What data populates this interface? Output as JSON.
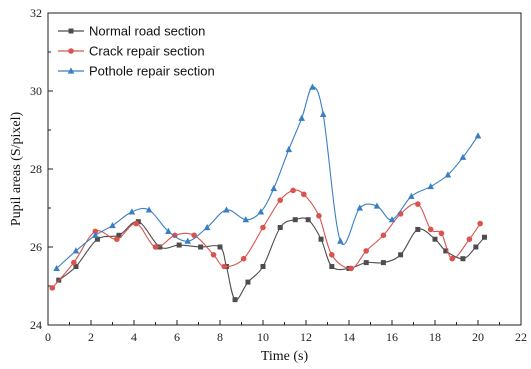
{
  "chart_data": {
    "type": "line",
    "xlabel": "Time (s)",
    "ylabel": "Pupil areas (S/pixel)",
    "xlim": [
      0,
      22
    ],
    "ylim": [
      24,
      32
    ],
    "xticks": [
      "0",
      "2",
      "4",
      "6",
      "8",
      "10",
      "12",
      "14",
      "16",
      "18",
      "20",
      "22"
    ],
    "yticks": [
      "24",
      "26",
      "28",
      "30",
      "32"
    ],
    "legend_position": "top-left",
    "grid": false,
    "series": [
      {
        "name": "Normal road section",
        "color": "#4d4d4d",
        "marker": "square",
        "points": [
          [
            0.5,
            25.15
          ],
          [
            1.3,
            25.5
          ],
          [
            2.3,
            26.2
          ],
          [
            3.3,
            26.3
          ],
          [
            4.2,
            26.65
          ],
          [
            5.2,
            26.0
          ],
          [
            6.1,
            26.05
          ],
          [
            7.1,
            26.0
          ],
          [
            8.0,
            26.0
          ],
          [
            8.3,
            25.5
          ],
          [
            8.7,
            24.65
          ],
          [
            9.3,
            25.1
          ],
          [
            10.0,
            25.5
          ],
          [
            10.8,
            26.5
          ],
          [
            11.5,
            26.7
          ],
          [
            12.1,
            26.7
          ],
          [
            12.7,
            26.2
          ],
          [
            13.2,
            25.5
          ],
          [
            14.0,
            25.45
          ],
          [
            14.8,
            25.6
          ],
          [
            15.6,
            25.6
          ],
          [
            16.4,
            25.8
          ],
          [
            17.2,
            26.45
          ],
          [
            18.0,
            26.2
          ],
          [
            18.5,
            25.9
          ],
          [
            19.3,
            25.7
          ],
          [
            19.9,
            26.0
          ],
          [
            20.3,
            26.25
          ]
        ]
      },
      {
        "name": "Crack repair section",
        "color": "#d9534f",
        "marker": "circle",
        "points": [
          [
            0.2,
            24.95
          ],
          [
            1.2,
            25.6
          ],
          [
            2.2,
            26.4
          ],
          [
            3.2,
            26.2
          ],
          [
            4.1,
            26.6
          ],
          [
            5.0,
            26.0
          ],
          [
            5.9,
            26.3
          ],
          [
            6.8,
            26.3
          ],
          [
            7.7,
            25.8
          ],
          [
            8.2,
            25.5
          ],
          [
            9.1,
            25.7
          ],
          [
            10.0,
            26.5
          ],
          [
            10.8,
            27.2
          ],
          [
            11.4,
            27.45
          ],
          [
            11.9,
            27.35
          ],
          [
            12.6,
            26.8
          ],
          [
            13.2,
            25.8
          ],
          [
            14.1,
            25.45
          ],
          [
            14.8,
            25.9
          ],
          [
            15.6,
            26.3
          ],
          [
            16.4,
            26.85
          ],
          [
            17.2,
            27.1
          ],
          [
            17.8,
            26.45
          ],
          [
            18.3,
            26.35
          ],
          [
            18.8,
            25.7
          ],
          [
            19.6,
            26.2
          ],
          [
            20.1,
            26.6
          ]
        ]
      },
      {
        "name": "Pothole repair section",
        "color": "#3a7fc4",
        "marker": "triangle",
        "points": [
          [
            0.4,
            25.45
          ],
          [
            1.3,
            25.9
          ],
          [
            2.2,
            26.3
          ],
          [
            3.0,
            26.55
          ],
          [
            3.9,
            26.9
          ],
          [
            4.7,
            26.95
          ],
          [
            5.6,
            26.4
          ],
          [
            6.5,
            26.15
          ],
          [
            7.4,
            26.5
          ],
          [
            8.3,
            26.95
          ],
          [
            9.2,
            26.7
          ],
          [
            9.9,
            26.9
          ],
          [
            10.5,
            27.5
          ],
          [
            11.2,
            28.5
          ],
          [
            11.8,
            29.3
          ],
          [
            12.3,
            30.1
          ],
          [
            12.8,
            29.4
          ],
          [
            13.6,
            26.15
          ],
          [
            14.5,
            27.0
          ],
          [
            15.3,
            27.05
          ],
          [
            16.0,
            26.7
          ],
          [
            16.9,
            27.3
          ],
          [
            17.8,
            27.55
          ],
          [
            18.6,
            27.85
          ],
          [
            19.3,
            28.3
          ],
          [
            20.0,
            28.85
          ]
        ]
      }
    ]
  }
}
